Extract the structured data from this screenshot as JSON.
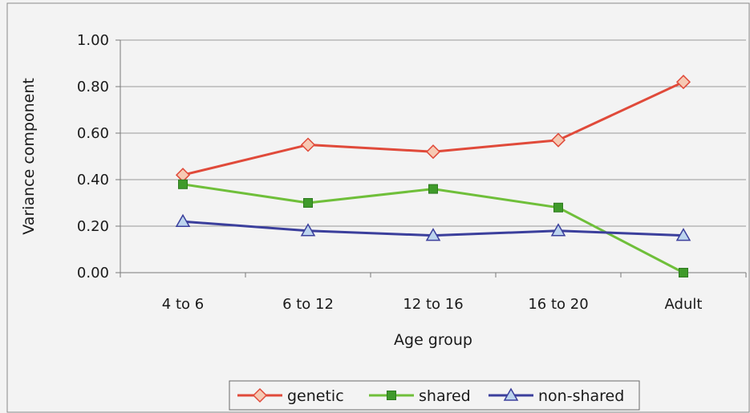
{
  "chart_data": {
    "type": "line",
    "title": "",
    "xlabel": "Age group",
    "ylabel": "Variance component",
    "categories": [
      "4 to 6",
      "6 to 12",
      "12 to 16",
      "16 to 20",
      "Adult"
    ],
    "ylim": [
      0,
      1
    ],
    "yticks": [
      "0.00",
      "0.20",
      "0.40",
      "0.60",
      "0.80",
      "1.00"
    ],
    "grid": "horizontal",
    "legend_position": "bottom",
    "series": [
      {
        "name": "genetic",
        "values": [
          0.42,
          0.55,
          0.52,
          0.57,
          0.82
        ],
        "color": "#e04a3a",
        "marker": "diamond",
        "marker_fill": "#f6c9b3"
      },
      {
        "name": "shared",
        "values": [
          0.38,
          0.3,
          0.36,
          0.28,
          0.0
        ],
        "color": "#6fbf3a",
        "marker": "square",
        "marker_fill": "#3f9a2a"
      },
      {
        "name": "non-shared",
        "values": [
          0.22,
          0.18,
          0.16,
          0.18,
          0.16
        ],
        "color": "#3b3f9c",
        "marker": "triangle",
        "marker_fill": "#bcd4ee"
      }
    ]
  }
}
